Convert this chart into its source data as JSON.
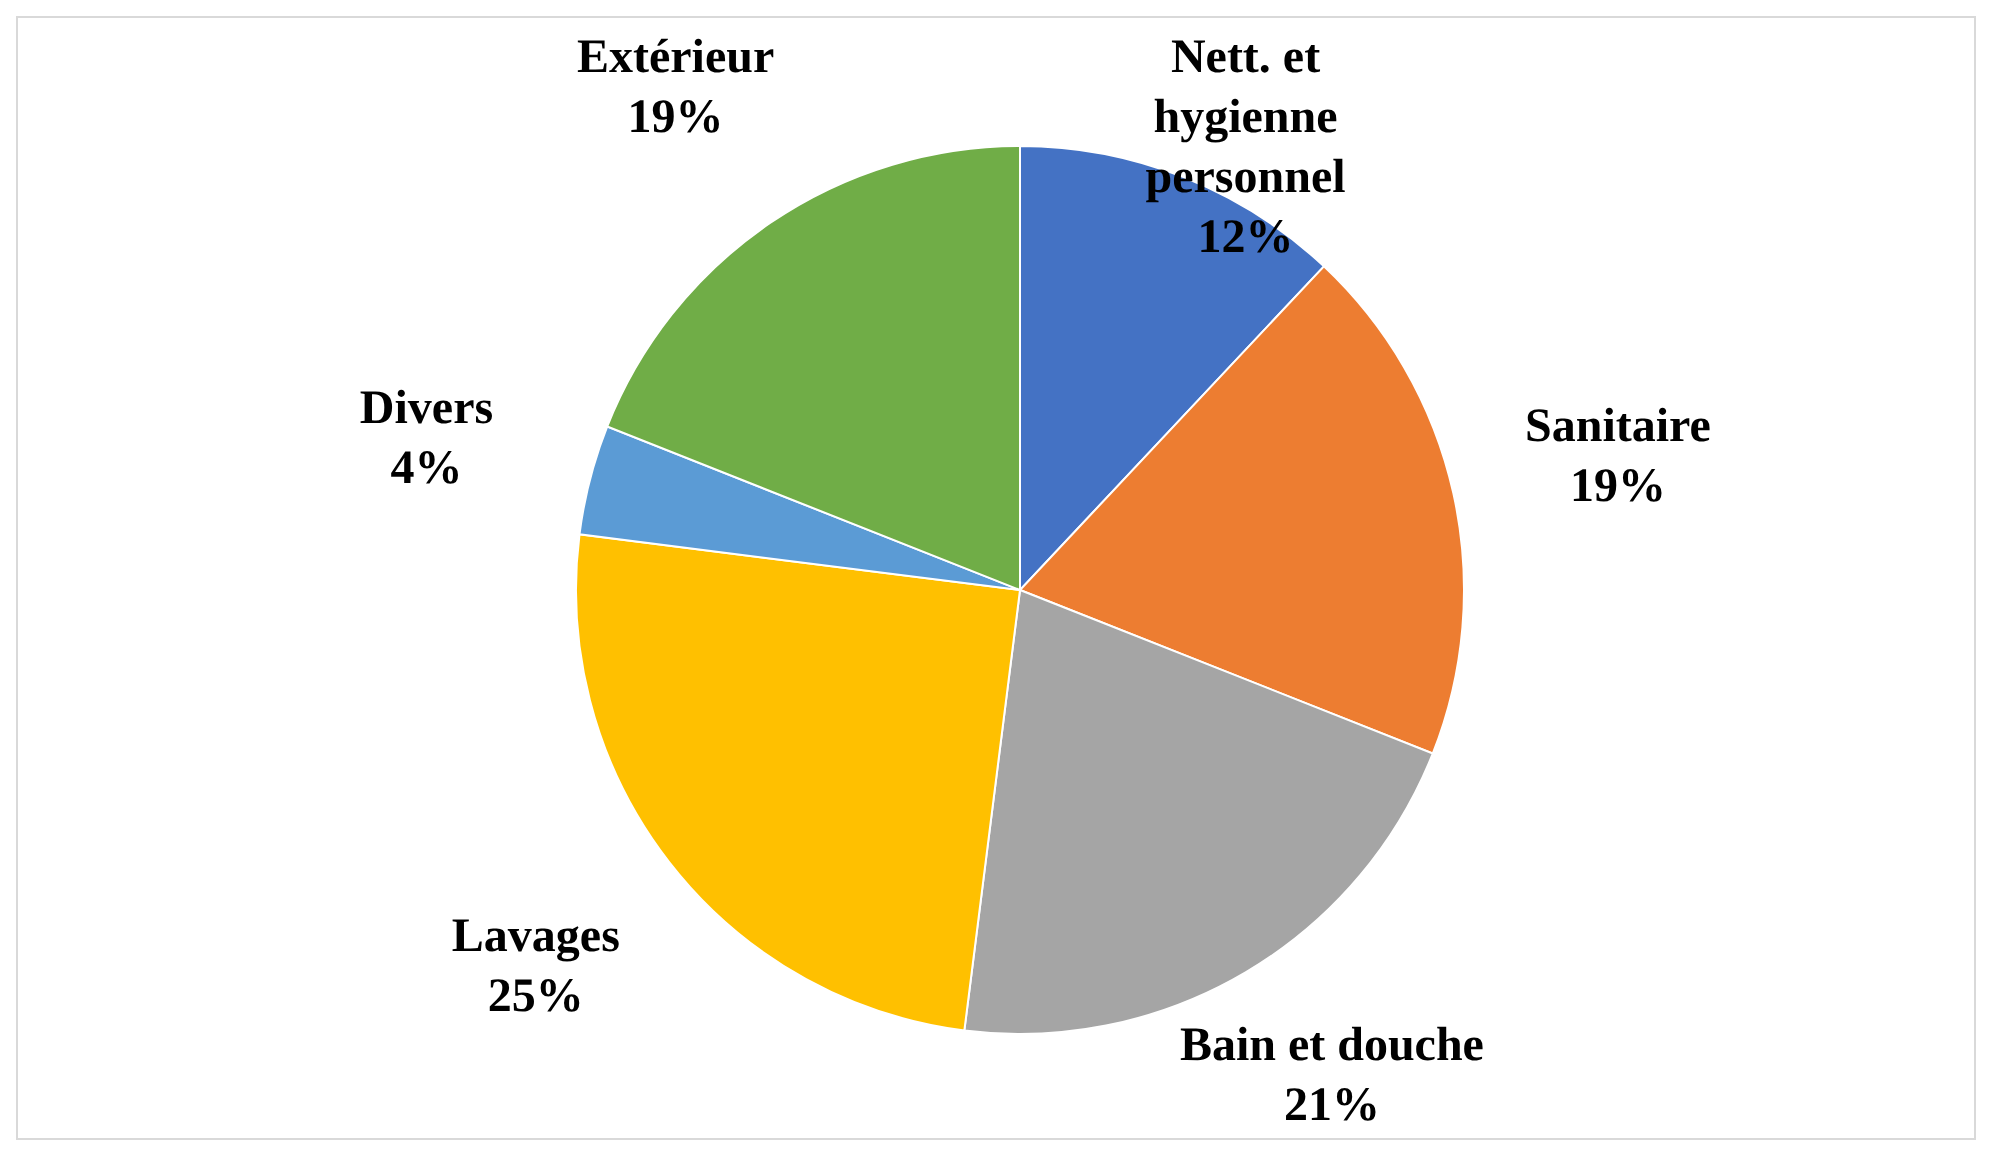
{
  "chart_data": {
    "type": "pie",
    "categories": [
      "Nett. et hygienne personnel",
      "Sanitaire",
      "Bain et douche",
      "Lavages",
      "Divers",
      "Extérieur"
    ],
    "values": [
      12,
      19,
      21,
      25,
      4,
      19
    ],
    "colors": [
      "#4472c4",
      "#ed7d31",
      "#a5a5a5",
      "#ffc000",
      "#5b9bd5",
      "#70ad47"
    ],
    "value_labels": [
      "12%",
      "19%",
      "21%",
      "25%",
      "4%",
      "19%"
    ]
  }
}
